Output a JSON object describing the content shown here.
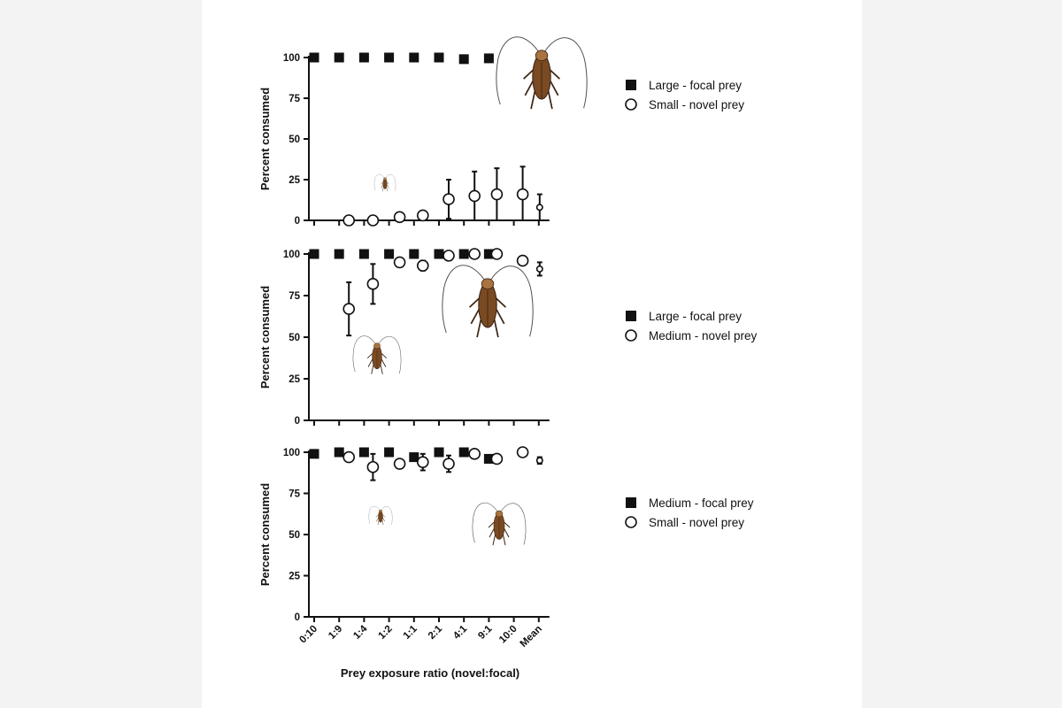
{
  "style": {
    "page_background": "#f3f3f3",
    "card_background": "#ffffff",
    "ink": "#111111",
    "insect_body": "#7a4a22",
    "insect_dark": "#3b2412",
    "insect_light": "#a8733f"
  },
  "figure": {
    "xlabel": "Prey exposure ratio (novel:focal)",
    "categories": [
      "0:10",
      "1:9",
      "1:4",
      "1:2",
      "1:1",
      "2:1",
      "4:1",
      "9:1",
      "10:0",
      "Mean"
    ]
  },
  "chart_data": [
    {
      "type": "scatter",
      "panel": "top",
      "ylabel": "Percent consumed",
      "ylim": [
        0,
        100
      ],
      "yticks": [
        0,
        25,
        50,
        75,
        100
      ],
      "grid": false,
      "legend_placement": "right",
      "series": [
        {
          "name": "Large - focal prey",
          "marker": "filled-square",
          "points": [
            {
              "x": "0:10",
              "y": 100
            },
            {
              "x": "1:9",
              "y": 100
            },
            {
              "x": "1:4",
              "y": 100
            },
            {
              "x": "1:2",
              "y": 100
            },
            {
              "x": "1:1",
              "y": 100
            },
            {
              "x": "2:1",
              "y": 100
            },
            {
              "x": "4:1",
              "y": 99
            },
            {
              "x": "9:1",
              "y": 99.5
            }
          ]
        },
        {
          "name": "Small - novel prey",
          "marker": "open-circle",
          "points": [
            {
              "x": "1:9",
              "y": 0,
              "err": 0
            },
            {
              "x": "1:4",
              "y": 0,
              "err": 0
            },
            {
              "x": "1:2",
              "y": 2,
              "err": 0
            },
            {
              "x": "1:1",
              "y": 3,
              "err": 0
            },
            {
              "x": "2:1",
              "y": 13,
              "err": 12
            },
            {
              "x": "4:1",
              "y": 15,
              "err": 15
            },
            {
              "x": "9:1",
              "y": 16,
              "err": 16
            },
            {
              "x": "10:0",
              "y": 16,
              "err": 17
            },
            {
              "x": "Mean",
              "y": 8,
              "err": 8,
              "small": true
            }
          ]
        }
      ]
    },
    {
      "type": "scatter",
      "panel": "middle",
      "ylabel": "Percent consumed",
      "ylim": [
        0,
        100
      ],
      "yticks": [
        0,
        25,
        50,
        75,
        100
      ],
      "grid": false,
      "legend_placement": "right",
      "series": [
        {
          "name": "Large - focal prey",
          "marker": "filled-square",
          "points": [
            {
              "x": "0:10",
              "y": 100
            },
            {
              "x": "1:9",
              "y": 100
            },
            {
              "x": "1:4",
              "y": 100
            },
            {
              "x": "1:2",
              "y": 100
            },
            {
              "x": "1:1",
              "y": 100
            },
            {
              "x": "2:1",
              "y": 100
            },
            {
              "x": "4:1",
              "y": 100
            },
            {
              "x": "9:1",
              "y": 100
            }
          ]
        },
        {
          "name": "Medium - novel prey",
          "marker": "open-circle",
          "points": [
            {
              "x": "1:9",
              "y": 67,
              "err": 16
            },
            {
              "x": "1:4",
              "y": 82,
              "err": 12
            },
            {
              "x": "1:2",
              "y": 95,
              "err": 0
            },
            {
              "x": "1:1",
              "y": 93,
              "err": 3
            },
            {
              "x": "2:1",
              "y": 99,
              "err": 0
            },
            {
              "x": "4:1",
              "y": 100,
              "err": 0
            },
            {
              "x": "9:1",
              "y": 100,
              "err": 0
            },
            {
              "x": "10:0",
              "y": 96,
              "err": 0
            },
            {
              "x": "Mean",
              "y": 91,
              "err": 4,
              "small": true
            }
          ]
        }
      ]
    },
    {
      "type": "scatter",
      "panel": "bottom",
      "ylabel": "Percent consumed",
      "ylim": [
        0,
        100
      ],
      "yticks": [
        0,
        25,
        50,
        75,
        100
      ],
      "grid": false,
      "legend_placement": "right",
      "series": [
        {
          "name": "Medium - focal prey",
          "marker": "filled-square",
          "points": [
            {
              "x": "0:10",
              "y": 99
            },
            {
              "x": "1:9",
              "y": 100
            },
            {
              "x": "1:4",
              "y": 100
            },
            {
              "x": "1:2",
              "y": 100
            },
            {
              "x": "1:1",
              "y": 97
            },
            {
              "x": "2:1",
              "y": 100
            },
            {
              "x": "4:1",
              "y": 100
            },
            {
              "x": "9:1",
              "y": 96
            }
          ]
        },
        {
          "name": "Small - novel prey",
          "marker": "open-circle",
          "points": [
            {
              "x": "1:9",
              "y": 97,
              "err": 0
            },
            {
              "x": "1:4",
              "y": 91,
              "err": 8
            },
            {
              "x": "1:2",
              "y": 93,
              "err": 0
            },
            {
              "x": "1:1",
              "y": 94,
              "err": 5
            },
            {
              "x": "2:1",
              "y": 93,
              "err": 5
            },
            {
              "x": "4:1",
              "y": 99,
              "err": 0
            },
            {
              "x": "9:1",
              "y": 96,
              "err": 2
            },
            {
              "x": "10:0",
              "y": 100,
              "err": 0
            },
            {
              "x": "Mean",
              "y": 95,
              "err": 2,
              "small": true
            }
          ]
        }
      ]
    }
  ]
}
